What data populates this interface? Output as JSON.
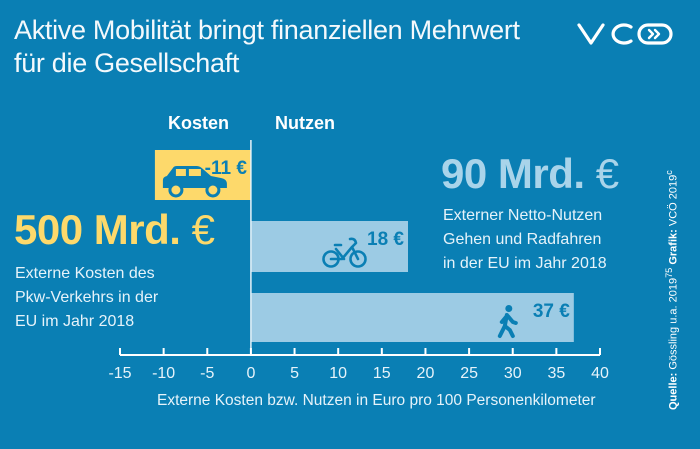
{
  "header": {
    "title_line1": "Aktive Mobilität bringt finanziellen Mehrwert",
    "title_line2": "für die Gesellschaft",
    "logo_text": "VCÖ"
  },
  "columns": {
    "costs": "Kosten",
    "benefits": "Nutzen"
  },
  "callouts": {
    "costs": {
      "value": "500 Mrd.",
      "unit": "€",
      "lines": [
        "Externe Kosten des",
        "Pkw-Verkehrs in der",
        "EU im Jahr 2018"
      ]
    },
    "benefits": {
      "value": "90 Mrd.",
      "unit": "€",
      "lines": [
        "Externer Netto-Nutzen",
        "Gehen und Radfahren",
        "in der EU im Jahr 2018"
      ]
    }
  },
  "source": {
    "label": "Quelle:",
    "text": "Gössling u.a. 2019",
    "sup": "75",
    "graphic_label": "Grafik:",
    "graphic_text": "VCÖ 2019",
    "graphic_sup": "c"
  },
  "colors": {
    "background": "#0a7fb4",
    "cost_bar": "#fdd96b",
    "benefit_bar": "#9ccbe4",
    "icon": "#0a7fb4",
    "cost_text": "#fdd96b",
    "benefit_text": "#a9d4ea"
  },
  "chart_data": {
    "type": "bar",
    "orientation": "horizontal",
    "title": "Aktive Mobilität bringt finanziellen Mehrwert für die Gesellschaft",
    "xlabel": "Externe Kosten bzw. Nutzen in Euro pro 100 Personenkilometer",
    "ylabel": "",
    "xlim": [
      -15,
      40
    ],
    "xticks": [
      -15,
      -10,
      -5,
      0,
      5,
      10,
      15,
      20,
      25,
      30,
      35,
      40
    ],
    "grid": false,
    "categories": [
      "Pkw",
      "Fahrrad",
      "Gehen"
    ],
    "values": [
      -11,
      18,
      37
    ],
    "labels": [
      "-11 €",
      "18 €",
      "37 €"
    ],
    "icons": [
      "car-icon",
      "bicycle-icon",
      "pedestrian-icon"
    ]
  }
}
